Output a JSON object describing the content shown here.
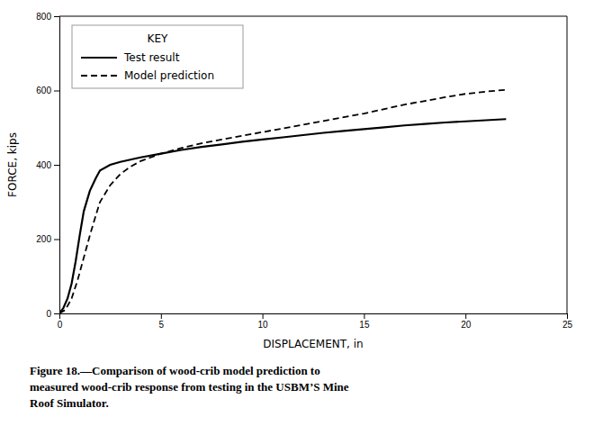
{
  "chart_data": {
    "type": "line",
    "xlabel": "DISPLACEMENT, in",
    "ylabel": "FORCE, kips",
    "xlim": [
      0,
      25
    ],
    "ylim": [
      0,
      800
    ],
    "xticks": [
      0,
      5,
      10,
      15,
      20,
      25
    ],
    "yticks": [
      0,
      200,
      400,
      600,
      800
    ],
    "grid": false,
    "legend": "top-left",
    "legend_title": "KEY",
    "caption": "Figure 18.—Comparison of wood-crib model prediction to\nmeasured wood-crib response from testing in the USBM’S Mine\nRoof Simulator.",
    "series": [
      {
        "name": "Test result",
        "color": "#000000",
        "line_style": "solid",
        "x": [
          0.0,
          0.2,
          0.4,
          0.6,
          0.8,
          1.0,
          1.2,
          1.5,
          1.8,
          2.0,
          2.5,
          3.0,
          3.5,
          4.0,
          5.0,
          6.0,
          7.0,
          8.0,
          9.0,
          10.0,
          11.0,
          12.0,
          13.0,
          14.0,
          15.0,
          16.0,
          17.0,
          18.0,
          19.0,
          20.0,
          21.0,
          22.0
        ],
        "values": [
          0.0,
          15.0,
          40.0,
          80.0,
          140.0,
          210.0,
          275.0,
          330.0,
          365.0,
          385.0,
          400.0,
          408.0,
          414.0,
          420.0,
          430.0,
          440.0,
          448.0,
          455.0,
          462.0,
          468.0,
          474.0,
          480.0,
          486.0,
          491.0,
          496.0,
          501.0,
          506.0,
          510.0,
          514.0,
          517.0,
          520.0,
          523.0
        ]
      },
      {
        "name": "Model prediction",
        "color": "#000000",
        "line_style": "dashed",
        "x": [
          0.0,
          0.3,
          0.6,
          0.9,
          1.2,
          1.5,
          1.8,
          2.0,
          2.5,
          3.0,
          3.5,
          4.0,
          5.0,
          6.0,
          7.0,
          8.0,
          9.0,
          10.0,
          11.0,
          12.0,
          13.0,
          14.0,
          15.0,
          16.0,
          17.0,
          18.0,
          19.0,
          20.0,
          21.0,
          22.0
        ],
        "values": [
          0.0,
          10.0,
          40.0,
          90.0,
          150.0,
          210.0,
          265.0,
          300.0,
          345.0,
          375.0,
          395.0,
          410.0,
          430.0,
          445.0,
          458.0,
          468.0,
          478.0,
          488.0,
          498.0,
          508.0,
          518.0,
          528.0,
          538.0,
          550.0,
          562.0,
          572.0,
          582.0,
          591.0,
          597.0,
          602.0
        ]
      }
    ]
  }
}
